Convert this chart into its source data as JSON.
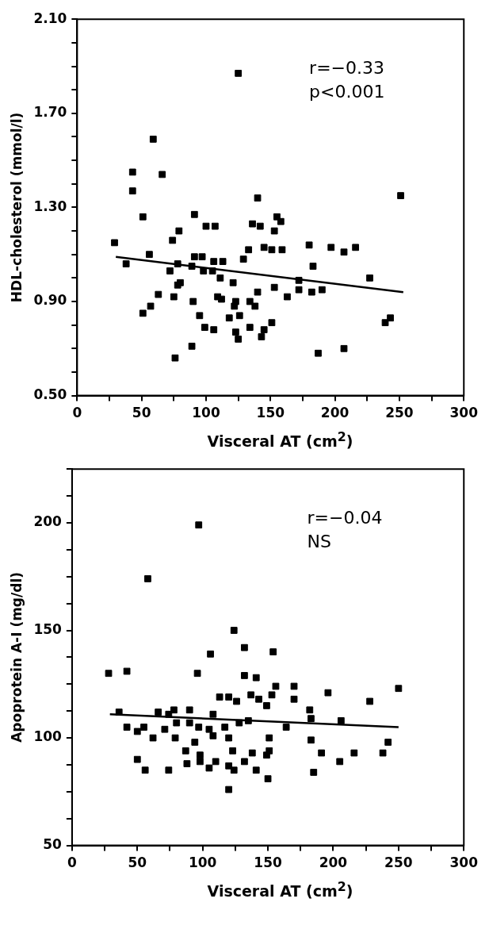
{
  "chart_data": [
    {
      "type": "scatter",
      "xlabel": "Visceral AT (cm$^{2}$)",
      "ylabel": "HDL-cholesterol (mmol/l)",
      "legend": false,
      "xlim": [
        0,
        300
      ],
      "xticks": [
        0,
        {
          "value": 25,
          "label": null
        },
        50,
        {
          "value": 75,
          "label": null
        },
        100,
        {
          "value": 125,
          "label": null
        },
        150,
        {
          "value": 175,
          "label": null
        },
        200,
        {
          "value": 225,
          "label": null
        },
        250,
        {
          "value": 275,
          "label": null
        },
        300
      ],
      "ylim": [
        0.5,
        2.1
      ],
      "yticks": [
        {
          "value": 0.5,
          "label": "0.50"
        },
        {
          "value": 0.6,
          "label": null
        },
        {
          "value": 0.7,
          "label": null
        },
        {
          "value": 0.8,
          "label": null
        },
        {
          "value": 0.9,
          "label": "0.90"
        },
        {
          "value": 1.0,
          "label": null
        },
        {
          "value": 1.1,
          "label": null
        },
        {
          "value": 1.2,
          "label": null
        },
        {
          "value": 1.3,
          "label": "1.30"
        },
        {
          "value": 1.4,
          "label": null
        },
        {
          "value": 1.5,
          "label": null
        },
        {
          "value": 1.6,
          "label": null
        },
        {
          "value": 1.7,
          "label": "1.70"
        },
        {
          "value": 1.8,
          "label": null
        },
        {
          "value": 1.9,
          "label": null
        },
        {
          "value": 2.0,
          "label": null
        },
        {
          "value": 2.1,
          "label": "2.10"
        }
      ],
      "annotations": [
        "r=−0.33",
        "p<0.001"
      ],
      "series": [
        {
          "marker": "square",
          "color": "#000000",
          "x": [
            125,
            59,
            43,
            66,
            43,
            140,
            51,
            91,
            100,
            107,
            136,
            142,
            79,
            74,
            29,
            133,
            129,
            145,
            56,
            38,
            78,
            72,
            91,
            97,
            89,
            98,
            106,
            113,
            105,
            111,
            80,
            78,
            121,
            63,
            75,
            140,
            57,
            51,
            90,
            109,
            112,
            123,
            122,
            126,
            118,
            134,
            138,
            95,
            99,
            106,
            123,
            125,
            134,
            143,
            89,
            76,
            251,
            155,
            158,
            153,
            151,
            159,
            180,
            197,
            207,
            216,
            183,
            227,
            172,
            172,
            163,
            153,
            182,
            190,
            239,
            243,
            151,
            145,
            187,
            207
          ],
          "values": [
            1.87,
            1.59,
            1.45,
            1.44,
            1.37,
            1.34,
            1.26,
            1.27,
            1.22,
            1.22,
            1.23,
            1.22,
            1.2,
            1.16,
            1.15,
            1.12,
            1.08,
            1.13,
            1.1,
            1.06,
            1.06,
            1.03,
            1.09,
            1.09,
            1.05,
            1.03,
            1.07,
            1.07,
            1.03,
            1.0,
            0.98,
            0.97,
            0.98,
            0.93,
            0.92,
            0.94,
            0.88,
            0.85,
            0.9,
            0.92,
            0.91,
            0.9,
            0.88,
            0.84,
            0.83,
            0.9,
            0.88,
            0.84,
            0.79,
            0.78,
            0.77,
            0.74,
            0.79,
            0.75,
            0.71,
            0.66,
            1.35,
            1.26,
            1.24,
            1.2,
            1.12,
            1.12,
            1.14,
            1.13,
            1.11,
            1.13,
            1.05,
            1.0,
            0.99,
            0.95,
            0.92,
            0.96,
            0.94,
            0.95,
            0.81,
            0.83,
            0.81,
            0.78,
            0.68,
            0.7
          ]
        },
        {
          "type": "line",
          "marker": "none",
          "color": "#000000",
          "x": [
            30,
            253
          ],
          "values": [
            1.09,
            0.94
          ]
        }
      ]
    },
    {
      "type": "scatter",
      "xlabel": "Visceral AT (cm$^{2}$)",
      "ylabel": "Apoprotein A-I (mg/dl)",
      "legend": false,
      "xlim": [
        0,
        300
      ],
      "xticks": [
        0,
        {
          "value": 25,
          "label": null
        },
        50,
        {
          "value": 75,
          "label": null
        },
        100,
        {
          "value": 125,
          "label": null
        },
        150,
        {
          "value": 175,
          "label": null
        },
        200,
        {
          "value": 225,
          "label": null
        },
        250,
        {
          "value": 275,
          "label": null
        },
        300
      ],
      "ylim": [
        50,
        225
      ],
      "yticks": [
        50,
        {
          "value": 62.5,
          "label": null
        },
        {
          "value": 75,
          "label": null
        },
        {
          "value": 87.5,
          "label": null
        },
        100,
        {
          "value": 112.5,
          "label": null
        },
        {
          "value": 125,
          "label": null
        },
        {
          "value": 137.5,
          "label": null
        },
        150,
        {
          "value": 162.5,
          "label": null
        },
        {
          "value": 175,
          "label": null
        },
        {
          "value": 187.5,
          "label": null
        },
        200,
        {
          "value": 212.5,
          "label": null
        },
        {
          "value": 225,
          "label": null
        }
      ],
      "annotations": [
        "r=−0.04",
        "NS"
      ],
      "series": [
        {
          "marker": "square",
          "color": "#000000",
          "x": [
            97,
            58,
            124,
            132,
            106,
            28,
            42,
            96,
            132,
            141,
            113,
            120,
            126,
            137,
            143,
            149,
            36,
            66,
            74,
            78,
            90,
            108,
            42,
            50,
            55,
            62,
            71,
            80,
            79,
            90,
            97,
            105,
            108,
            117,
            128,
            135,
            94,
            87,
            98,
            120,
            123,
            50,
            56,
            74,
            88,
            98,
            110,
            105,
            120,
            124,
            132,
            138,
            141,
            120,
            149,
            150,
            154,
            156,
            153,
            170,
            170,
            196,
            228,
            250,
            182,
            183,
            206,
            164,
            151,
            151,
            183,
            191,
            216,
            205,
            242,
            238,
            185
          ],
          "values": [
            199,
            174,
            150,
            142,
            139,
            130,
            131,
            130,
            129,
            128,
            119,
            119,
            117,
            120,
            118,
            115,
            112,
            112,
            111,
            113,
            113,
            111,
            105,
            103,
            105,
            100,
            104,
            107,
            100,
            107,
            105,
            104,
            101,
            105,
            107,
            108,
            98,
            94,
            92,
            100,
            94,
            90,
            85,
            85,
            88,
            89,
            89,
            86,
            87,
            85,
            89,
            93,
            85,
            76,
            92,
            81,
            140,
            124,
            120,
            124,
            118,
            121,
            117,
            123,
            113,
            109,
            108,
            105,
            100,
            94,
            99,
            93,
            93,
            89,
            98,
            93,
            84
          ]
        },
        {
          "type": "line",
          "marker": "none",
          "color": "#000000",
          "x": [
            29,
            250
          ],
          "values": [
            111,
            105
          ]
        }
      ]
    }
  ]
}
